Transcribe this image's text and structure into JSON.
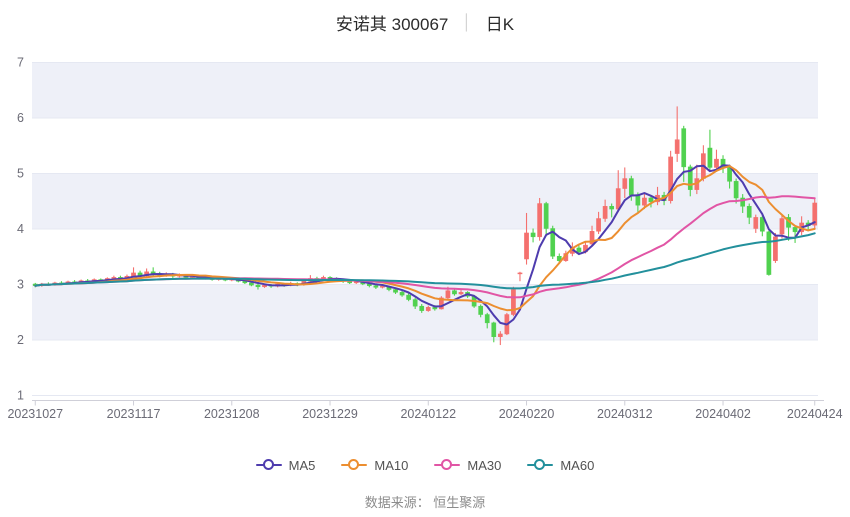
{
  "title": {
    "name": "安诺其 300067",
    "separator": "│",
    "kline_label": "日K"
  },
  "footer": {
    "text": "数据来源： 恒生聚源"
  },
  "chart_data": {
    "type": "candlestick",
    "title": "安诺其 300067 日K",
    "ylim": [
      1,
      7
    ],
    "y_ticks": [
      7,
      6,
      5,
      4,
      3,
      2,
      1
    ],
    "x_tick_labels": [
      "20231027",
      "20231117",
      "20231208",
      "20231229",
      "20240122",
      "20240220",
      "20240312",
      "20240402",
      "20240424"
    ],
    "x_tick_indices": [
      0,
      15,
      30,
      45,
      60,
      75,
      90,
      105,
      119
    ],
    "up_color": "#f4706e",
    "down_color": "#50d14f",
    "band_color": "#eef0f8",
    "grid_color": "#e5e8f2",
    "axis_line_color": "#cfcfd8",
    "axis_text_color": "#6b6b76",
    "grid_on": true,
    "legend_position": "bottom",
    "candles_ohlc": [
      [
        3.0,
        3.02,
        2.94,
        2.97
      ],
      [
        2.97,
        3.02,
        2.95,
        3.0
      ],
      [
        3.0,
        3.03,
        2.97,
        2.99
      ],
      [
        2.99,
        3.04,
        2.97,
        3.02
      ],
      [
        3.02,
        3.05,
        2.99,
        3.01
      ],
      [
        3.01,
        3.06,
        3.0,
        3.04
      ],
      [
        3.04,
        3.07,
        3.01,
        3.03
      ],
      [
        3.03,
        3.08,
        3.01,
        3.06
      ],
      [
        3.06,
        3.09,
        3.03,
        3.05
      ],
      [
        3.05,
        3.1,
        3.03,
        3.08
      ],
      [
        3.08,
        3.1,
        3.04,
        3.06
      ],
      [
        3.06,
        3.12,
        3.04,
        3.1
      ],
      [
        3.1,
        3.15,
        3.08,
        3.12
      ],
      [
        3.12,
        3.15,
        3.07,
        3.1
      ],
      [
        3.1,
        3.17,
        3.08,
        3.14
      ],
      [
        3.14,
        3.3,
        3.12,
        3.2
      ],
      [
        3.2,
        3.24,
        3.12,
        3.15
      ],
      [
        3.15,
        3.28,
        3.13,
        3.22
      ],
      [
        3.22,
        3.3,
        3.15,
        3.18
      ],
      [
        3.18,
        3.22,
        3.12,
        3.15
      ],
      [
        3.15,
        3.21,
        3.13,
        3.18
      ],
      [
        3.18,
        3.2,
        3.11,
        3.14
      ],
      [
        3.14,
        3.19,
        3.12,
        3.16
      ],
      [
        3.16,
        3.18,
        3.09,
        3.12
      ],
      [
        3.12,
        3.17,
        3.1,
        3.14
      ],
      [
        3.14,
        3.16,
        3.08,
        3.1
      ],
      [
        3.1,
        3.15,
        3.08,
        3.12
      ],
      [
        3.12,
        3.14,
        3.06,
        3.08
      ],
      [
        3.08,
        3.13,
        3.06,
        3.1
      ],
      [
        3.1,
        3.12,
        3.05,
        3.07
      ],
      [
        3.07,
        3.12,
        3.05,
        3.09
      ],
      [
        3.09,
        3.11,
        3.03,
        3.05
      ],
      [
        3.05,
        3.08,
        3.0,
        3.02
      ],
      [
        3.02,
        3.05,
        2.96,
        2.98
      ],
      [
        2.98,
        3.0,
        2.9,
        2.95
      ],
      [
        2.95,
        3.01,
        2.93,
        2.98
      ],
      [
        2.98,
        3.0,
        2.93,
        2.96
      ],
      [
        2.96,
        3.02,
        2.94,
        3.0
      ],
      [
        3.0,
        3.02,
        2.95,
        2.98
      ],
      [
        2.98,
        3.04,
        2.96,
        3.01
      ],
      [
        3.01,
        3.03,
        2.96,
        2.99
      ],
      [
        2.99,
        3.07,
        2.97,
        3.05
      ],
      [
        3.05,
        3.16,
        3.03,
        3.1
      ],
      [
        3.1,
        3.13,
        3.05,
        3.08
      ],
      [
        3.08,
        3.15,
        3.06,
        3.12
      ],
      [
        3.12,
        3.14,
        3.07,
        3.1
      ],
      [
        3.1,
        3.12,
        3.05,
        3.08
      ],
      [
        3.08,
        3.1,
        3.02,
        3.05
      ],
      [
        3.05,
        3.08,
        3.0,
        3.02
      ],
      [
        3.02,
        3.07,
        3.0,
        3.04
      ],
      [
        3.04,
        3.06,
        2.98,
        3.0
      ],
      [
        3.0,
        3.03,
        2.94,
        2.97
      ],
      [
        2.97,
        3.0,
        2.91,
        2.94
      ],
      [
        2.94,
        2.99,
        2.92,
        2.96
      ],
      [
        2.96,
        2.97,
        2.87,
        2.9
      ],
      [
        2.9,
        2.93,
        2.82,
        2.85
      ],
      [
        2.85,
        2.88,
        2.77,
        2.8
      ],
      [
        2.8,
        2.83,
        2.69,
        2.72
      ],
      [
        2.72,
        2.75,
        2.55,
        2.6
      ],
      [
        2.6,
        2.64,
        2.48,
        2.52
      ],
      [
        2.52,
        2.61,
        2.5,
        2.58
      ],
      [
        2.58,
        2.62,
        2.52,
        2.55
      ],
      [
        2.55,
        2.78,
        2.54,
        2.75
      ],
      [
        2.75,
        2.95,
        2.72,
        2.88
      ],
      [
        2.88,
        2.92,
        2.79,
        2.82
      ],
      [
        2.82,
        2.89,
        2.8,
        2.85
      ],
      [
        2.85,
        2.87,
        2.75,
        2.78
      ],
      [
        2.78,
        2.8,
        2.57,
        2.6
      ],
      [
        2.6,
        2.63,
        2.4,
        2.45
      ],
      [
        2.45,
        2.48,
        2.2,
        2.3
      ],
      [
        2.3,
        2.32,
        1.95,
        2.05
      ],
      [
        2.05,
        2.15,
        1.9,
        2.1
      ],
      [
        2.1,
        2.48,
        2.08,
        2.45
      ],
      [
        2.45,
        2.95,
        2.42,
        2.9
      ],
      [
        3.2,
        3.22,
        3.05,
        3.2
      ],
      [
        3.45,
        4.28,
        3.35,
        3.92
      ],
      [
        3.92,
        4.0,
        3.75,
        3.85
      ],
      [
        3.85,
        4.55,
        3.78,
        4.45
      ],
      [
        4.45,
        4.48,
        3.9,
        4.0
      ],
      [
        4.0,
        4.05,
        3.45,
        3.5
      ],
      [
        3.5,
        3.55,
        3.37,
        3.42
      ],
      [
        3.42,
        3.6,
        3.4,
        3.55
      ],
      [
        3.55,
        3.75,
        3.5,
        3.65
      ],
      [
        3.65,
        3.7,
        3.52,
        3.58
      ],
      [
        3.58,
        3.76,
        3.55,
        3.7
      ],
      [
        3.72,
        4.05,
        3.68,
        3.95
      ],
      [
        3.95,
        4.3,
        3.9,
        4.18
      ],
      [
        4.18,
        4.52,
        4.12,
        4.4
      ],
      [
        4.4,
        4.45,
        4.2,
        4.35
      ],
      [
        4.35,
        5.05,
        4.3,
        4.72
      ],
      [
        4.72,
        5.1,
        4.55,
        4.9
      ],
      [
        4.9,
        4.95,
        4.5,
        4.6
      ],
      [
        4.6,
        4.65,
        4.3,
        4.42
      ],
      [
        4.42,
        4.62,
        4.35,
        4.55
      ],
      [
        4.55,
        4.6,
        4.38,
        4.48
      ],
      [
        4.48,
        4.75,
        4.42,
        4.6
      ],
      [
        4.6,
        4.66,
        4.42,
        4.5
      ],
      [
        4.5,
        5.4,
        4.45,
        5.29
      ],
      [
        5.35,
        6.2,
        5.2,
        5.6
      ],
      [
        5.8,
        5.85,
        4.84,
        5.11
      ],
      [
        5.11,
        5.15,
        4.58,
        4.7
      ],
      [
        4.7,
        5.15,
        4.62,
        4.9
      ],
      [
        4.9,
        5.5,
        4.85,
        5.35
      ],
      [
        5.45,
        5.78,
        5.02,
        5.1
      ],
      [
        5.1,
        5.42,
        5.02,
        5.25
      ],
      [
        5.25,
        5.32,
        5.0,
        5.1
      ],
      [
        5.1,
        5.15,
        4.72,
        4.85
      ],
      [
        4.85,
        4.9,
        4.45,
        4.55
      ],
      [
        4.55,
        4.62,
        4.28,
        4.4
      ],
      [
        4.4,
        4.45,
        4.08,
        4.2
      ],
      [
        4.0,
        4.25,
        3.92,
        4.2
      ],
      [
        4.2,
        4.24,
        3.86,
        3.95
      ],
      [
        3.94,
        3.96,
        3.15,
        3.17
      ],
      [
        3.42,
        3.92,
        3.38,
        3.85
      ],
      [
        3.9,
        4.25,
        3.82,
        4.18
      ],
      [
        4.2,
        4.26,
        3.78,
        4.02
      ],
      [
        4.02,
        4.06,
        3.74,
        3.94
      ],
      [
        3.94,
        4.22,
        3.88,
        4.1
      ],
      [
        4.1,
        4.15,
        3.95,
        4.05
      ],
      [
        4.06,
        4.55,
        4.0,
        4.46
      ]
    ],
    "ma": [
      {
        "name": "MA5",
        "period": 5,
        "color": "#4e3cae"
      },
      {
        "name": "MA10",
        "period": 10,
        "color": "#ec8e30"
      },
      {
        "name": "MA30",
        "period": 30,
        "color": "#e155a5"
      },
      {
        "name": "MA60",
        "period": 60,
        "color": "#23909c"
      }
    ]
  }
}
